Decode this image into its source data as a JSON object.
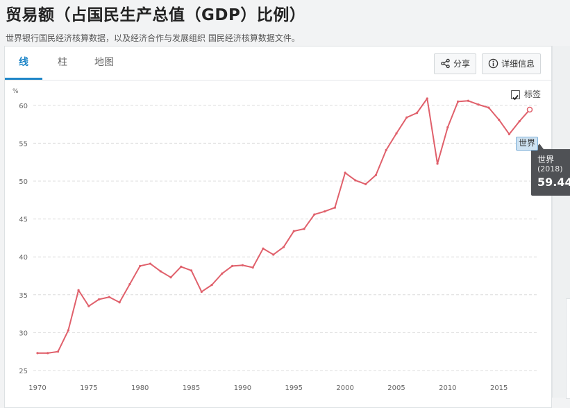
{
  "page": {
    "title": "贸易额（占国民生产总值（GDP）比例）",
    "source": "世界银行国民经济核算数据，以及经济合作与发展组织 国民经济核算数据文件。"
  },
  "tabs": [
    {
      "label": "线",
      "active": true
    },
    {
      "label": "柱",
      "active": false
    },
    {
      "label": "地图",
      "active": false
    }
  ],
  "toolbar": {
    "share_label": "分享",
    "share_icon": "share-icon",
    "details_label": "详细信息",
    "details_icon": "info-icon"
  },
  "legend_toggle": {
    "label": "标签",
    "checked": true
  },
  "tooltip": {
    "series": "世界",
    "year": "(2018)",
    "value": "59.44"
  },
  "colors": {
    "accent": "#1f86c8",
    "line": "#e0606b",
    "tooltip_bg": "#4f5155"
  },
  "chart_data": {
    "type": "line",
    "title": "",
    "xlabel": "",
    "ylabel": "%",
    "xlim": [
      1970,
      2018
    ],
    "ylim": [
      25,
      62
    ],
    "grid": true,
    "x_ticks": [
      1970,
      1975,
      1980,
      1985,
      1990,
      1995,
      2000,
      2005,
      2010,
      2015
    ],
    "y_ticks": [
      25,
      30,
      35,
      40,
      45,
      50,
      55,
      60
    ],
    "series": [
      {
        "name": "世界",
        "x": [
          1970,
          1971,
          1972,
          1973,
          1974,
          1975,
          1976,
          1977,
          1978,
          1979,
          1980,
          1981,
          1982,
          1983,
          1984,
          1985,
          1986,
          1987,
          1988,
          1989,
          1990,
          1991,
          1992,
          1993,
          1994,
          1995,
          1996,
          1997,
          1998,
          1999,
          2000,
          2001,
          2002,
          2003,
          2004,
          2005,
          2006,
          2007,
          2008,
          2009,
          2010,
          2011,
          2012,
          2013,
          2014,
          2015,
          2016,
          2017,
          2018
        ],
        "values": [
          27.3,
          27.3,
          27.5,
          30.3,
          35.6,
          33.5,
          34.4,
          34.7,
          34.0,
          36.4,
          38.8,
          39.1,
          38.1,
          37.3,
          38.7,
          38.2,
          35.4,
          36.3,
          37.8,
          38.8,
          38.9,
          38.6,
          41.1,
          40.3,
          41.3,
          43.4,
          43.7,
          45.6,
          46.0,
          46.5,
          51.1,
          50.1,
          49.6,
          50.8,
          54.1,
          56.3,
          58.4,
          59.0,
          60.9,
          52.3,
          57.1,
          60.5,
          60.6,
          60.1,
          59.7,
          58.1,
          56.2,
          57.9,
          59.44
        ],
        "end_label": "世界"
      }
    ]
  }
}
